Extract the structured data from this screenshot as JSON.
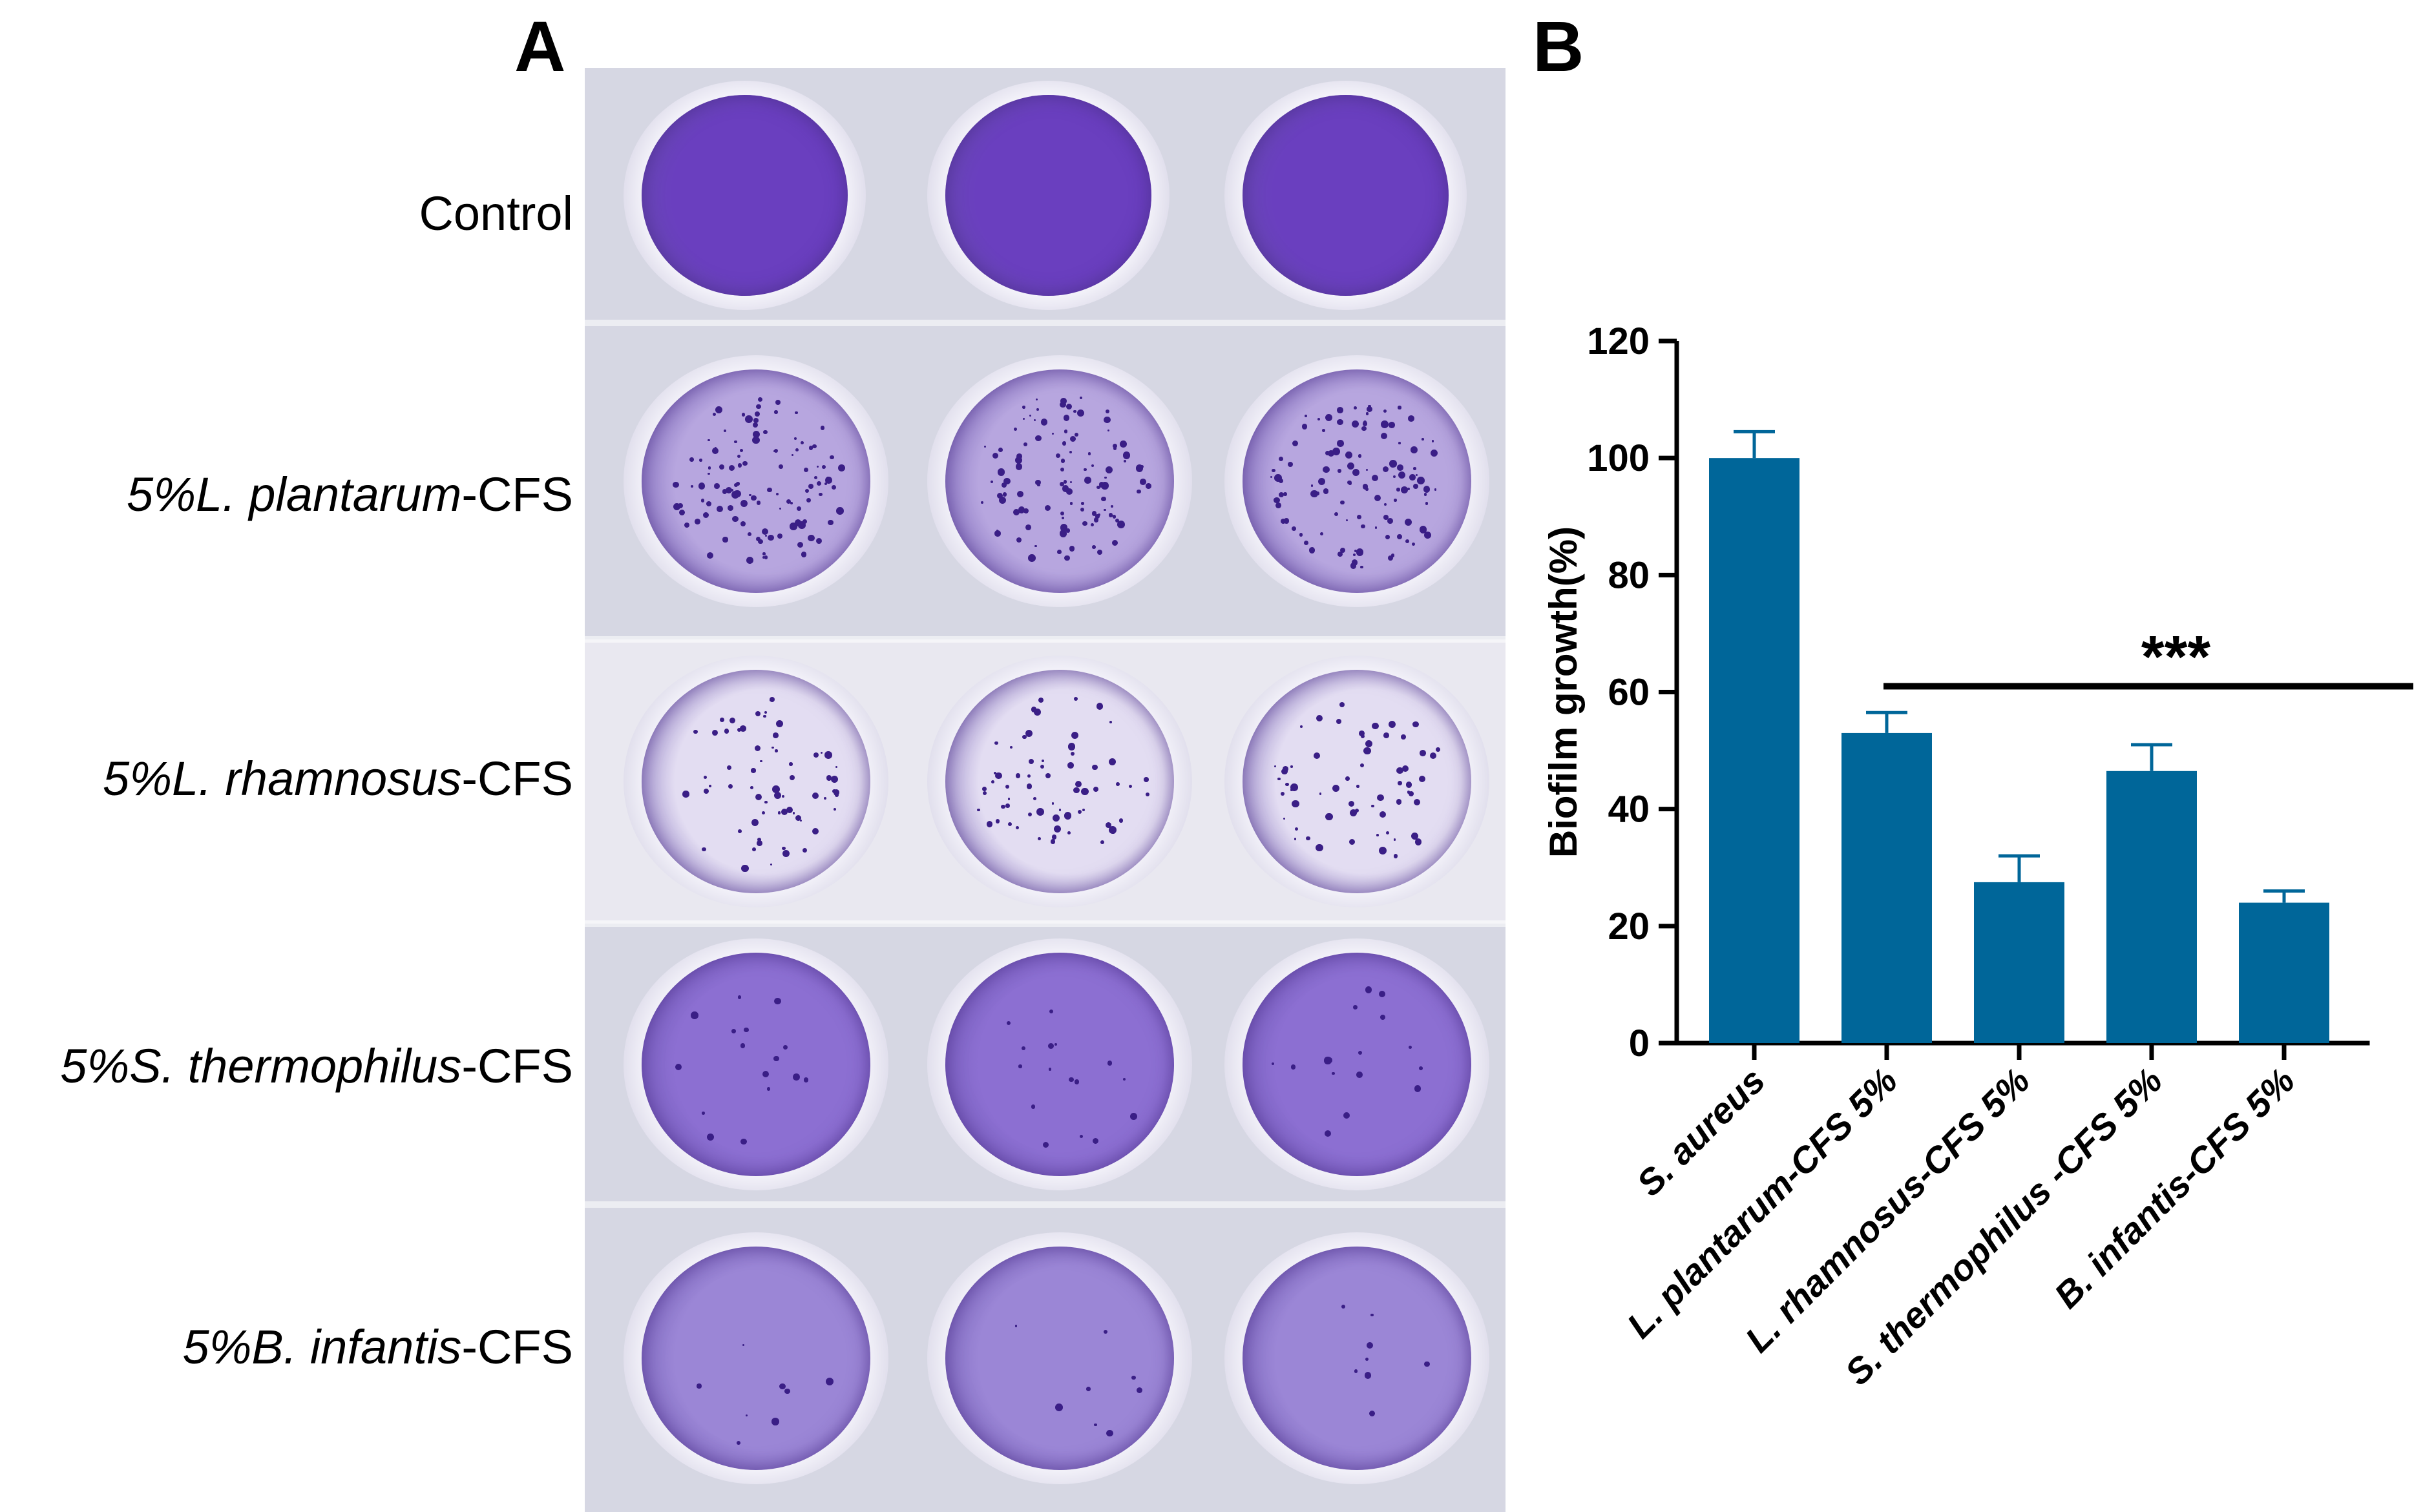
{
  "panel_a": {
    "letter": "A",
    "rows": [
      {
        "prefix": "",
        "italic": "",
        "suffix": "Control",
        "tint": "#6a3fbf",
        "spot_density": 0
      },
      {
        "prefix": "5%",
        "italic": "L. plantarum",
        "suffix": "-CFS",
        "tint": "#b7a6df",
        "spot_density": 0.7
      },
      {
        "prefix": "5%",
        "italic": "L. rhamnosus",
        "suffix": "-CFS",
        "tint": "#e3ddf2",
        "spot_density": 0.4
      },
      {
        "prefix": "5%",
        "italic": "S. thermophilus",
        "suffix": "-CFS",
        "tint": "#8c6fd2",
        "spot_density": 0.1
      },
      {
        "prefix": "5%",
        "italic": "B. infantis",
        "suffix": "-CFS",
        "tint": "#9b86d6",
        "spot_density": 0.05
      }
    ]
  },
  "panel_b": {
    "letter": "B",
    "significance": "***"
  },
  "chart_data": {
    "type": "bar",
    "categories": [
      "S. aureus",
      "L. plantarum-CFS 5%",
      "L. rhamnosus-CFS 5%",
      "S. thermophilus -CFS 5%",
      "B. infantis-CFS 5%"
    ],
    "values": [
      100,
      53,
      27.5,
      46.5,
      24
    ],
    "errors": [
      4.5,
      3.5,
      4.5,
      4.5,
      2
    ],
    "ylabel": "Biofilm growth(%)",
    "xlabel": "",
    "ylim": [
      0,
      120
    ],
    "yticks": [
      0,
      20,
      40,
      60,
      80,
      100,
      120
    ],
    "bar_color": "#006699",
    "significance_bar": {
      "from_category": 1,
      "to_category": 4,
      "y": 61,
      "label": "***"
    },
    "grid": false
  }
}
